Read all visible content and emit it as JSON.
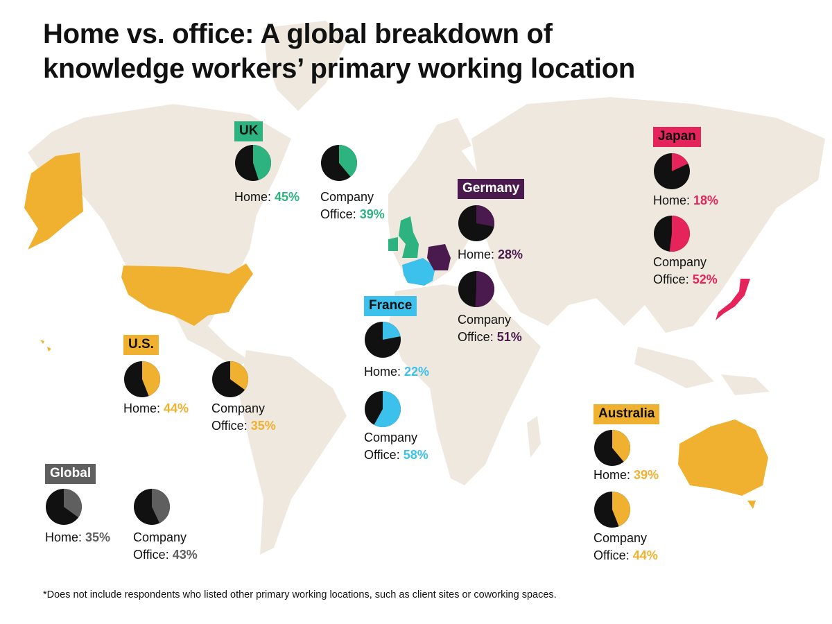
{
  "title": {
    "line1": "Home vs. office: A global breakdown of",
    "line2": "knowledge workers’ primary working location"
  },
  "footnote": "*Does not include respondents who listed other primary working locations, such as client sites or coworking spaces.",
  "colors": {
    "map_land": "#efe8df",
    "pie_background": "#111111",
    "highlight_uk": "#2db37f",
    "highlight_germany": "#4a1a4e",
    "highlight_france": "#3cc0ec",
    "highlight_japan": "#e5245b",
    "highlight_us": "#efb12f",
    "highlight_australia": "#efb12f",
    "highlight_global": "#5f5f5f"
  },
  "countries": {
    "uk": {
      "name": "UK",
      "color": "#2db37f",
      "label_text_color": "#111111",
      "home": {
        "label": "Home: ",
        "value": "45%",
        "fraction": 0.45
      },
      "office": {
        "line1": "Company",
        "label": "Office: ",
        "value": "39%",
        "fraction": 0.39
      }
    },
    "germany": {
      "name": "Germany",
      "color": "#4a1a4e",
      "label_text_color": "#ffffff",
      "home": {
        "label": "Home: ",
        "value": "28%",
        "fraction": 0.28
      },
      "office": {
        "line1": "Company",
        "label": "Office: ",
        "value": "51%",
        "fraction": 0.51
      }
    },
    "japan": {
      "name": "Japan",
      "color": "#e5245b",
      "label_text_color": "#111111",
      "home": {
        "label": "Home: ",
        "value": "18%",
        "fraction": 0.18
      },
      "office": {
        "line1": "Company",
        "label": "Office: ",
        "value": "52%",
        "fraction": 0.52
      }
    },
    "france": {
      "name": "France",
      "color": "#3cc0ec",
      "label_text_color": "#111111",
      "home": {
        "label": "Home: ",
        "value": "22%",
        "fraction": 0.22
      },
      "office": {
        "line1": "Company",
        "label": "Office: ",
        "value": "58%",
        "fraction": 0.58
      }
    },
    "us": {
      "name": "U.S.",
      "color": "#efb12f",
      "label_text_color": "#111111",
      "home": {
        "label": "Home: ",
        "value": "44%",
        "fraction": 0.44
      },
      "office": {
        "line1": "Company",
        "label": "Office: ",
        "value": "35%",
        "fraction": 0.35
      }
    },
    "australia": {
      "name": "Australia",
      "color": "#efb12f",
      "label_text_color": "#111111",
      "home": {
        "label": "Home: ",
        "value": "39%",
        "fraction": 0.39
      },
      "office": {
        "line1": "Company",
        "label": "Office: ",
        "value": "44%",
        "fraction": 0.44
      }
    },
    "global": {
      "name": "Global",
      "color": "#5f5f5f",
      "label_text_color": "#ffffff",
      "home": {
        "label": "Home: ",
        "value": "35%",
        "fraction": 0.35
      },
      "office": {
        "line1": "Company",
        "label": "Office: ",
        "value": "43%",
        "fraction": 0.43
      }
    }
  }
}
